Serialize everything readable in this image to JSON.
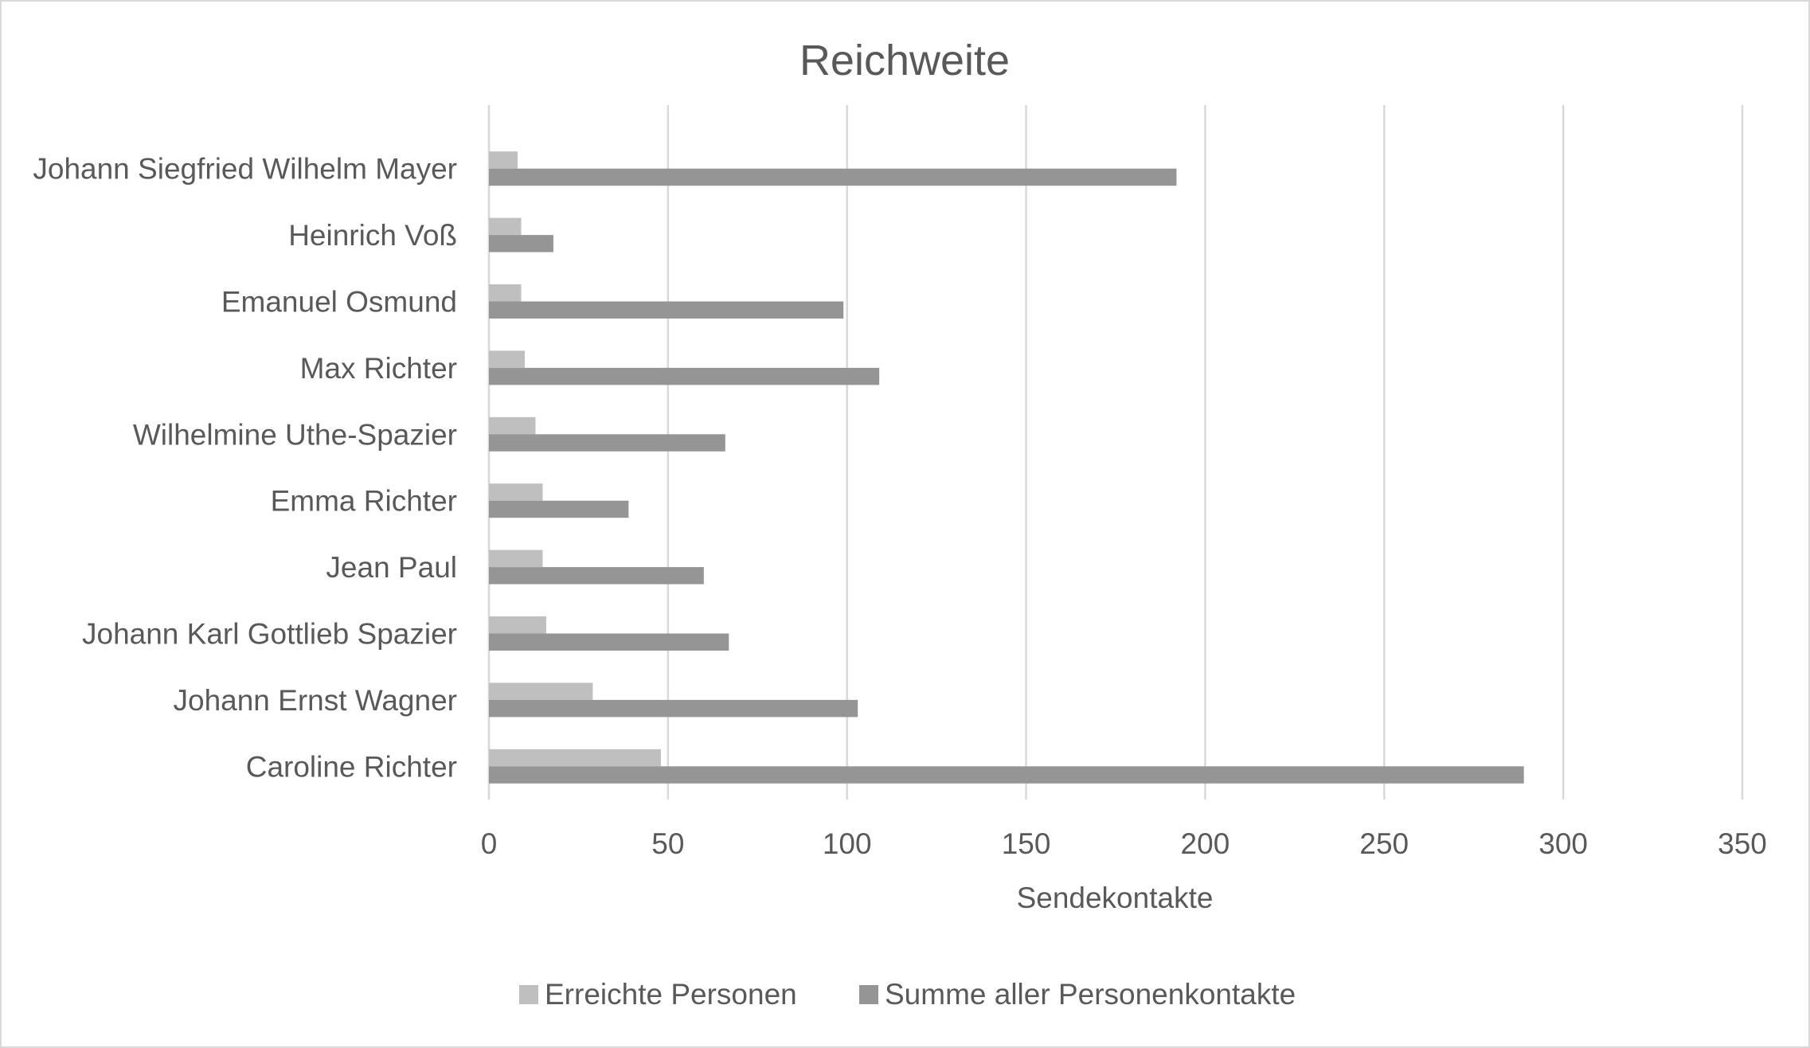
{
  "chart_data": {
    "type": "bar",
    "orientation": "horizontal",
    "title": "Reichweite",
    "xlabel": "Sendekontakte",
    "ylabel": "",
    "xlim": [
      0,
      350
    ],
    "xticks": [
      0,
      50,
      100,
      150,
      200,
      250,
      300,
      350
    ],
    "grid": true,
    "legend_position": "bottom",
    "categories": [
      "Caroline Richter",
      "Johann Ernst Wagner",
      "Johann Karl Gottlieb Spazier",
      "Jean Paul",
      "Emma Richter",
      "Wilhelmine Uthe-Spazier",
      "Max Richter",
      "Emanuel Osmund",
      "Heinrich Voß",
      "Johann Siegfried Wilhelm Mayer"
    ],
    "series": [
      {
        "name": "Erreichte Personen",
        "color": "#bfbfbf",
        "values": [
          48,
          29,
          16,
          15,
          15,
          13,
          10,
          9,
          9,
          8
        ]
      },
      {
        "name": "Summe aller Personenkontakte",
        "color": "#959595",
        "values": [
          289,
          103,
          67,
          60,
          39,
          66,
          109,
          99,
          18,
          192
        ]
      }
    ]
  }
}
